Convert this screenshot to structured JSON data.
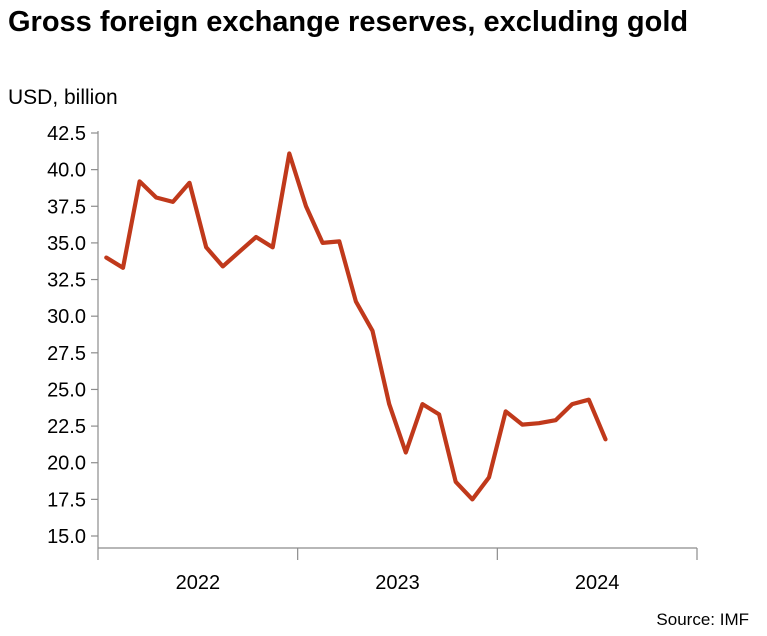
{
  "title": "Gross foreign exchange reserves, excluding gold",
  "unit": "USD, billion",
  "source": "Source: IMF",
  "colors": {
    "series": "#c0391b",
    "axis": "#8c8c8c",
    "text": "#000000"
  },
  "chart_data": {
    "type": "line",
    "title": "Gross foreign exchange reserves, excluding gold",
    "ylabel": "USD, billion",
    "ylim": [
      15.0,
      42.5
    ],
    "yticks": [
      "15.0",
      "17.5",
      "20.0",
      "22.5",
      "25.0",
      "27.5",
      "30.0",
      "32.5",
      "35.0",
      "37.5",
      "40.0",
      "42.5"
    ],
    "x_start": "2022-01",
    "x_end": "2024-12",
    "year_labels": [
      "2022",
      "2023",
      "2024"
    ],
    "grid": false,
    "legend": "none",
    "series": [
      {
        "x": [
          "2022-01",
          "2022-02",
          "2022-03",
          "2022-04",
          "2022-05",
          "2022-06",
          "2022-07",
          "2022-08",
          "2022-09",
          "2022-10",
          "2022-11",
          "2022-12",
          "2023-01",
          "2023-02",
          "2023-03",
          "2023-04",
          "2023-05",
          "2023-06",
          "2023-07",
          "2023-08",
          "2023-09",
          "2023-10",
          "2023-11",
          "2023-12",
          "2024-01",
          "2024-02",
          "2024-03",
          "2024-04",
          "2024-05",
          "2024-06",
          "2024-07"
        ],
        "values": [
          34.0,
          33.3,
          39.2,
          38.1,
          37.8,
          39.1,
          34.7,
          33.4,
          34.4,
          35.4,
          34.7,
          41.1,
          37.5,
          35.0,
          35.1,
          31.0,
          29.0,
          24.0,
          20.7,
          24.0,
          23.3,
          18.7,
          17.5,
          19.0,
          23.5,
          22.6,
          22.7,
          22.9,
          24.0,
          24.3,
          21.6
        ]
      }
    ]
  }
}
